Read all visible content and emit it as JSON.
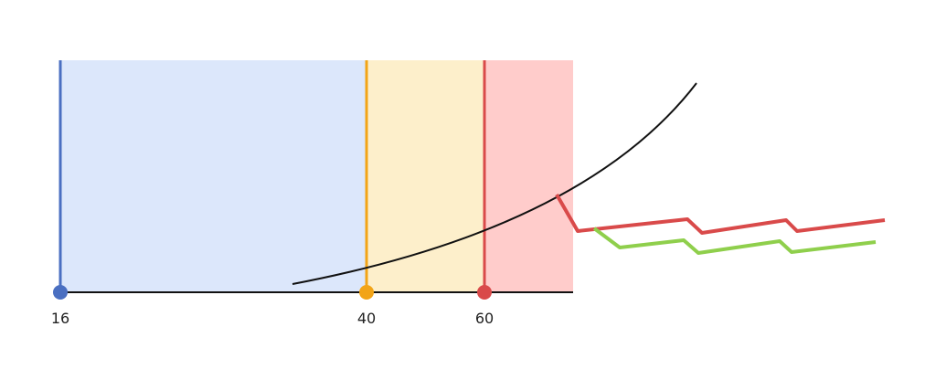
{
  "axis": {
    "labels": [
      "16",
      "40",
      "60"
    ]
  }
}
